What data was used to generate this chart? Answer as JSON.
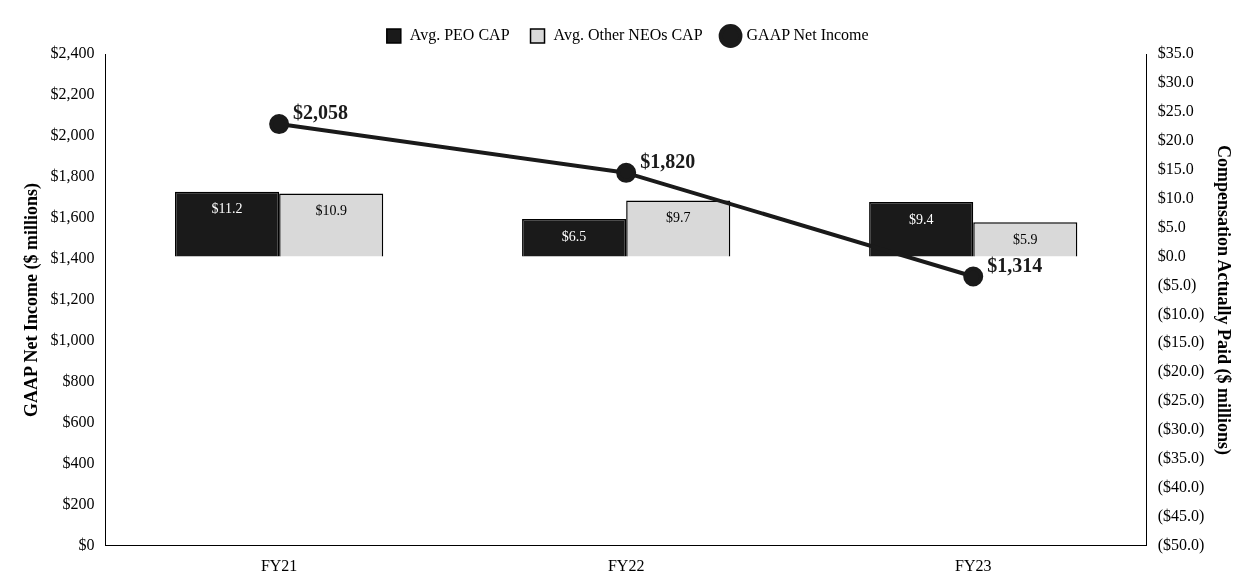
{
  "chart_data": {
    "type": "bar",
    "categories": [
      "FY21",
      "FY22",
      "FY23"
    ],
    "ylabel": "GAAP Net Income ($ millions)",
    "y2label": "Compensation Actually Paid ($ millions)",
    "legend": "top",
    "marker": "circle",
    "series": [
      {
        "name": "Avg. PEO CAP",
        "color": "#1a1a1a",
        "axis": "y2",
        "values": [
          11.2,
          6.5,
          9.4
        ],
        "value_labels": [
          "$11.2",
          "$6.5",
          "$9.4"
        ]
      },
      {
        "name": "Avg. Other NEOs CAP",
        "color": "#d9d9d9",
        "axis": "y2",
        "values": [
          10.9,
          9.7,
          5.9
        ],
        "value_labels": [
          "$10.9",
          "$9.7",
          "$5.9"
        ]
      },
      {
        "name": "GAAP Net Income",
        "color": "#1a1a1a",
        "type": "line",
        "axis": "y",
        "values": [
          2058,
          1820,
          1314
        ],
        "value_labels": [
          "$2,058",
          "$1,820",
          "$1,314"
        ]
      }
    ],
    "ylim": [
      0,
      2400
    ],
    "yticks": [
      {
        "value": 0,
        "label": "$0"
      },
      {
        "value": 200,
        "label": "$200"
      },
      {
        "value": 400,
        "label": "$400"
      },
      {
        "value": 600,
        "label": "$600"
      },
      {
        "value": 800,
        "label": "$800"
      },
      {
        "value": 1000,
        "label": "$1,000"
      },
      {
        "value": 1200,
        "label": "$1,200"
      },
      {
        "value": 1400,
        "label": "$1,400"
      },
      {
        "value": 1600,
        "label": "$1,600"
      },
      {
        "value": 1800,
        "label": "$1,800"
      },
      {
        "value": 2000,
        "label": "$2,000"
      },
      {
        "value": 2200,
        "label": "$2,200"
      },
      {
        "value": 2400,
        "label": "$2,400"
      }
    ],
    "y2lim": [
      -50,
      35
    ],
    "y2ticks": [
      {
        "value": -50,
        "label": "($50.0)"
      },
      {
        "value": -45,
        "label": "($45.0)"
      },
      {
        "value": -40,
        "label": "($40.0)"
      },
      {
        "value": -35,
        "label": "($35.0)"
      },
      {
        "value": -30,
        "label": "($30.0)"
      },
      {
        "value": -25,
        "label": "($25.0)"
      },
      {
        "value": -20,
        "label": "($20.0)"
      },
      {
        "value": -15,
        "label": "($15.0)"
      },
      {
        "value": -10,
        "label": "($10.0)"
      },
      {
        "value": -5,
        "label": "($5.0)"
      },
      {
        "value": 0,
        "label": "$0.0"
      },
      {
        "value": 5,
        "label": "$5.0"
      },
      {
        "value": 10,
        "label": "$10.0"
      },
      {
        "value": 15,
        "label": "$15.0"
      },
      {
        "value": 20,
        "label": "$20.0"
      },
      {
        "value": 25,
        "label": "$25.0"
      },
      {
        "value": 30,
        "label": "$30.0"
      },
      {
        "value": 35,
        "label": "$35.0"
      }
    ]
  }
}
